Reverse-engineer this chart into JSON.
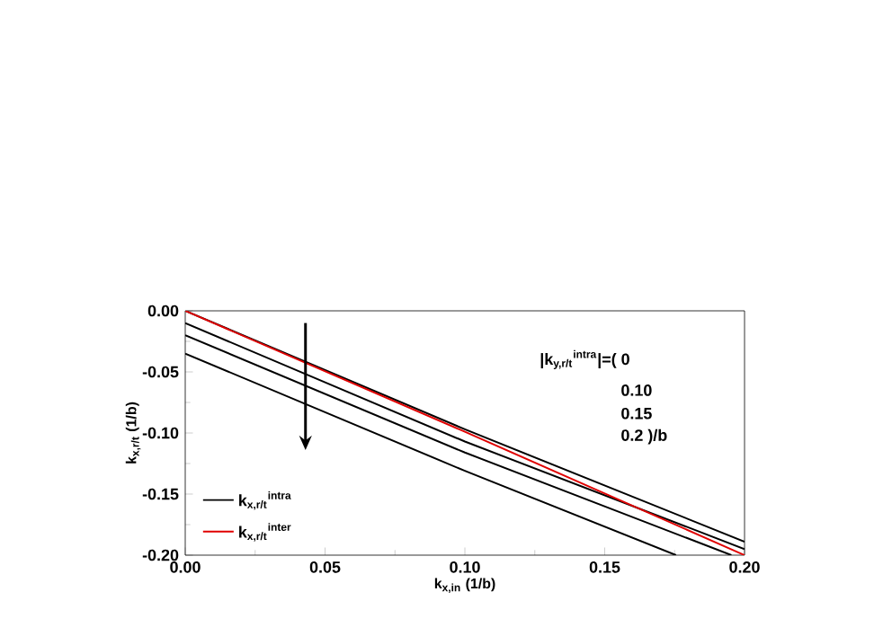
{
  "chart_data": {
    "type": "line",
    "xlabel": "k$_{x,in}$ (1/b)",
    "ylabel": "k$_{x,r/t}$ (1/b)",
    "xlim": [
      0,
      0.2
    ],
    "ylim": [
      -0.2,
      0
    ],
    "xticks": [
      {
        "value": 0,
        "label": "0.00"
      },
      0.05,
      {
        "value": 0.1,
        "label": "0.10"
      },
      0.15,
      {
        "value": 0.2,
        "label": "0.20"
      }
    ],
    "yticks": [
      {
        "value": -0.2,
        "label": "-0.20"
      },
      -0.15,
      {
        "value": -0.1,
        "label": "-0.10"
      },
      -0.05,
      {
        "value": 0,
        "label": "0.00"
      }
    ],
    "legend": "bottom left",
    "line_style": "solid",
    "marker": "none",
    "annotations": [
      "|k$_{y,r/t}$$^{intra}$|=( 0",
      "0.10",
      "0.15",
      "0.2 )/b"
    ],
    "series": [
      {
        "name": "k$_{x,r/t}$$^{intra}$",
        "color": "#000000",
        "x": [
          0,
          0.1,
          0.2
        ],
        "values": [
          0,
          -0.097,
          -0.189
        ]
      },
      {
        "color": "#000000",
        "x": [
          0,
          0.1,
          0.2
        ],
        "values": [
          -0.01,
          -0.107,
          -0.195
        ]
      },
      {
        "color": "#000000",
        "x": [
          0,
          0.1,
          0.1953
        ],
        "values": [
          -0.02,
          -0.116,
          -0.2
        ]
      },
      {
        "color": "#000000",
        "x": [
          0,
          0.1,
          0.1755
        ],
        "values": [
          -0.035,
          -0.131,
          -0.2
        ]
      },
      {
        "name": "k$_{x,r/t}$$^{inter}$",
        "color": "#e00000",
        "x": [
          0,
          0.1,
          0.2
        ],
        "values": [
          0,
          -0.099,
          -0.2
        ]
      }
    ]
  }
}
